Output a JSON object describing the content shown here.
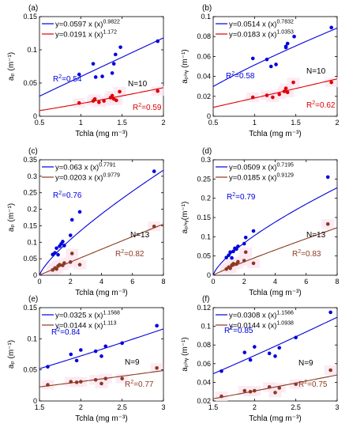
{
  "chart_data": [
    {
      "type": "scatter",
      "panel_label": "(a)",
      "xlabel": "Tchla (mg m⁻³)",
      "ylabel": "aₚ (m⁻¹)",
      "xlim": [
        0.5,
        2
      ],
      "ylim": [
        0,
        0.15
      ],
      "xticks": [
        "0.5",
        "1",
        "1.5",
        "2"
      ],
      "yticks": [
        "0",
        "0.05",
        "0.1",
        "0.15"
      ],
      "series": [
        {
          "color": "#0000dd",
          "equation": "y=0.0597  x  (x)",
          "exponent": "0.9822",
          "r2": "0.54",
          "fit": {
            "a": 0.0597,
            "b": 0.9822
          },
          "x": [
            0.98,
            1.15,
            1.18,
            1.26,
            1.38,
            1.4,
            1.42,
            1.48,
            1.93
          ],
          "y": [
            0.063,
            0.079,
            0.059,
            0.06,
            0.065,
            0.079,
            0.093,
            0.104,
            0.113
          ]
        },
        {
          "color": "#dd0000",
          "equation": "y=0.0191  x  (x)",
          "exponent": "1.172",
          "r2": "0.59",
          "fit": {
            "a": 0.0191,
            "b": 1.172
          },
          "x": [
            0.98,
            1.15,
            1.17,
            1.22,
            1.28,
            1.36,
            1.38,
            1.4,
            1.43,
            1.47,
            1.93
          ],
          "y": [
            0.02,
            0.023,
            0.026,
            0.021,
            0.023,
            0.028,
            0.031,
            0.026,
            0.024,
            0.037,
            0.038
          ]
        }
      ],
      "n_label": "N=10"
    },
    {
      "type": "scatter",
      "panel_label": "(b)",
      "xlabel": "Tchla (mg m⁻³)",
      "ylabel": "aₚₕᵧ (m⁻¹)",
      "xlim": [
        0.5,
        2
      ],
      "ylim": [
        0,
        0.1
      ],
      "xticks": [
        "0.5",
        "1",
        "1.5",
        "2"
      ],
      "yticks": [
        "0",
        "0.02",
        "0.04",
        "0.06",
        "0.08",
        "0.1"
      ],
      "series": [
        {
          "color": "#0000dd",
          "equation": "y=0.0514  x  (x)",
          "exponent": "0.7832",
          "r2": "0.58",
          "fit": {
            "a": 0.0514,
            "b": 0.7832
          },
          "x": [
            0.98,
            1.15,
            1.2,
            1.26,
            1.38,
            1.38,
            1.4,
            1.48,
            1.93
          ],
          "y": [
            0.058,
            0.057,
            0.05,
            0.052,
            0.07,
            0.069,
            0.073,
            0.08,
            0.089
          ]
        },
        {
          "color": "#dd0000",
          "equation": "y=0.0183  x  (x)",
          "exponent": "1.0353",
          "r2": "0.62",
          "fit": {
            "a": 0.0183,
            "b": 1.0353
          },
          "x": [
            0.98,
            1.15,
            1.22,
            1.3,
            1.36,
            1.38,
            1.4,
            1.47,
            1.93
          ],
          "y": [
            0.019,
            0.021,
            0.019,
            0.022,
            0.025,
            0.028,
            0.024,
            0.034,
            0.034
          ]
        }
      ],
      "n_label": "N=10"
    },
    {
      "type": "scatter",
      "panel_label": "(c)",
      "xlabel": "Tchla (mg m⁻³)",
      "ylabel": "aₚ (m⁻¹)",
      "xlim": [
        0,
        8
      ],
      "ylim": [
        0,
        0.35
      ],
      "xticks": [
        "0",
        "2",
        "4",
        "6",
        "8"
      ],
      "yticks": [
        "0",
        "0.05",
        "0.1",
        "0.15",
        "0.2",
        "0.25",
        "0.3",
        "0.35"
      ],
      "series": [
        {
          "color": "#0000dd",
          "equation": "y=0.063 x (x)",
          "exponent": "0.7791",
          "r2": "0.76",
          "fit": {
            "a": 0.063,
            "b": 0.7791
          },
          "x": [
            0.85,
            1.0,
            1.1,
            1.2,
            1.3,
            1.4,
            1.5,
            1.6,
            2.0,
            2.1,
            2.6,
            7.4
          ],
          "y": [
            0.063,
            0.068,
            0.082,
            0.062,
            0.088,
            0.095,
            0.102,
            0.09,
            0.121,
            0.168,
            0.192,
            0.315
          ]
        },
        {
          "color": "#8b3a1f",
          "equation": "y=0.0203 x (x)",
          "exponent": "0.9779",
          "r2": "0.82",
          "fit": {
            "a": 0.0203,
            "b": 0.9779
          },
          "x": [
            0.85,
            1.0,
            1.1,
            1.2,
            1.3,
            1.5,
            1.6,
            2.0,
            2.1,
            2.6,
            7.4
          ],
          "y": [
            0.016,
            0.022,
            0.019,
            0.028,
            0.032,
            0.03,
            0.037,
            0.04,
            0.066,
            0.032,
            0.148
          ]
        }
      ],
      "n_label": "N=13"
    },
    {
      "type": "scatter",
      "panel_label": "(d)",
      "xlabel": "Tchla (mg m⁻³)",
      "ylabel": "aₚₕᵧ(m⁻¹)",
      "xlim": [
        0,
        8
      ],
      "ylim": [
        0,
        0.3
      ],
      "xticks": [
        "0",
        "2",
        "4",
        "6",
        "8"
      ],
      "yticks": [
        "0",
        "0.05",
        "0.1",
        "0.15",
        "0.2",
        "0.25",
        "0.3"
      ],
      "series": [
        {
          "color": "#0000dd",
          "equation": "y=0.0509 x (x)",
          "exponent": "0.7195",
          "r2": "0.79",
          "fit": {
            "a": 0.0509,
            "b": 0.7195
          },
          "x": [
            0.85,
            1.0,
            1.1,
            1.2,
            1.3,
            1.4,
            1.5,
            1.6,
            2.0,
            2.1,
            2.6,
            7.4
          ],
          "y": [
            0.046,
            0.052,
            0.06,
            0.045,
            0.062,
            0.07,
            0.068,
            0.075,
            0.082,
            0.098,
            0.115,
            0.255
          ]
        },
        {
          "color": "#8b3a1f",
          "equation": "y=0.0185 x (x)",
          "exponent": "0.9129",
          "r2": "0.83",
          "fit": {
            "a": 0.0185,
            "b": 0.9129
          },
          "x": [
            0.85,
            1.0,
            1.1,
            1.2,
            1.3,
            1.5,
            1.6,
            2.0,
            2.1,
            2.6,
            7.4
          ],
          "y": [
            0.016,
            0.021,
            0.018,
            0.026,
            0.03,
            0.029,
            0.035,
            0.038,
            0.06,
            0.031,
            0.133
          ]
        }
      ],
      "n_label": "N=13"
    },
    {
      "type": "scatter",
      "panel_label": "(e)",
      "xlabel": "Tchla (mg m⁻³)",
      "ylabel": "aₚ (m⁻¹)",
      "xlim": [
        1.5,
        3
      ],
      "ylim": [
        0,
        0.15
      ],
      "xticks": [
        "1.5",
        "2",
        "2.5",
        "3"
      ],
      "yticks": [
        "0",
        "0.05",
        "0.1",
        "0.15"
      ],
      "series": [
        {
          "color": "#0000dd",
          "equation": "y=0.0325 x (x)",
          "exponent": "1.1568",
          "r2": "0.84",
          "fit": {
            "a": 0.0325,
            "b": 1.1568
          },
          "x": [
            1.6,
            1.88,
            1.95,
            2.0,
            2.18,
            2.25,
            2.3,
            2.5,
            2.92
          ],
          "y": [
            0.055,
            0.075,
            0.065,
            0.082,
            0.08,
            0.072,
            0.088,
            0.093,
            0.121
          ]
        },
        {
          "color": "#8b3a1f",
          "equation": "y=0.0144 x (x)",
          "exponent": "1.113",
          "r2": "0.77",
          "fit": {
            "a": 0.0144,
            "b": 1.113
          },
          "x": [
            1.6,
            1.88,
            1.95,
            2.0,
            2.18,
            2.25,
            2.3,
            2.5,
            2.92
          ],
          "y": [
            0.026,
            0.031,
            0.03,
            0.031,
            0.034,
            0.028,
            0.036,
            0.036,
            0.053
          ]
        }
      ],
      "n_label": "N=9"
    },
    {
      "type": "scatter",
      "panel_label": "(f)",
      "xlabel": "Tchla (mg m⁻³)",
      "ylabel": "aₚₕᵧ (m⁻¹)",
      "xlim": [
        1.5,
        3
      ],
      "ylim": [
        0.02,
        0.12
      ],
      "xticks": [
        "1.5",
        "2",
        "2.5",
        "3"
      ],
      "yticks": [
        "0.02",
        "0.04",
        "0.06",
        "0.08",
        "0.1",
        "0.12"
      ],
      "series": [
        {
          "color": "#0000dd",
          "equation": "y=0.0308 x (x)",
          "exponent": "1.1566",
          "r2": "0.85",
          "fit": {
            "a": 0.0308,
            "b": 1.1566
          },
          "x": [
            1.6,
            1.88,
            1.95,
            2.0,
            2.18,
            2.25,
            2.3,
            2.5,
            2.92
          ],
          "y": [
            0.052,
            0.072,
            0.064,
            0.078,
            0.071,
            0.068,
            0.077,
            0.088,
            0.115
          ]
        },
        {
          "color": "#8b3a1f",
          "equation": "y=0.0144 x (x)",
          "exponent": "1.0938",
          "r2": "0.75",
          "fit": {
            "a": 0.0144,
            "b": 1.0938
          },
          "x": [
            1.6,
            1.88,
            1.95,
            2.0,
            2.18,
            2.25,
            2.3,
            2.5,
            2.92
          ],
          "y": [
            0.025,
            0.031,
            0.03,
            0.031,
            0.035,
            0.029,
            0.034,
            0.038,
            0.053
          ]
        }
      ],
      "n_label": "N=9"
    }
  ]
}
